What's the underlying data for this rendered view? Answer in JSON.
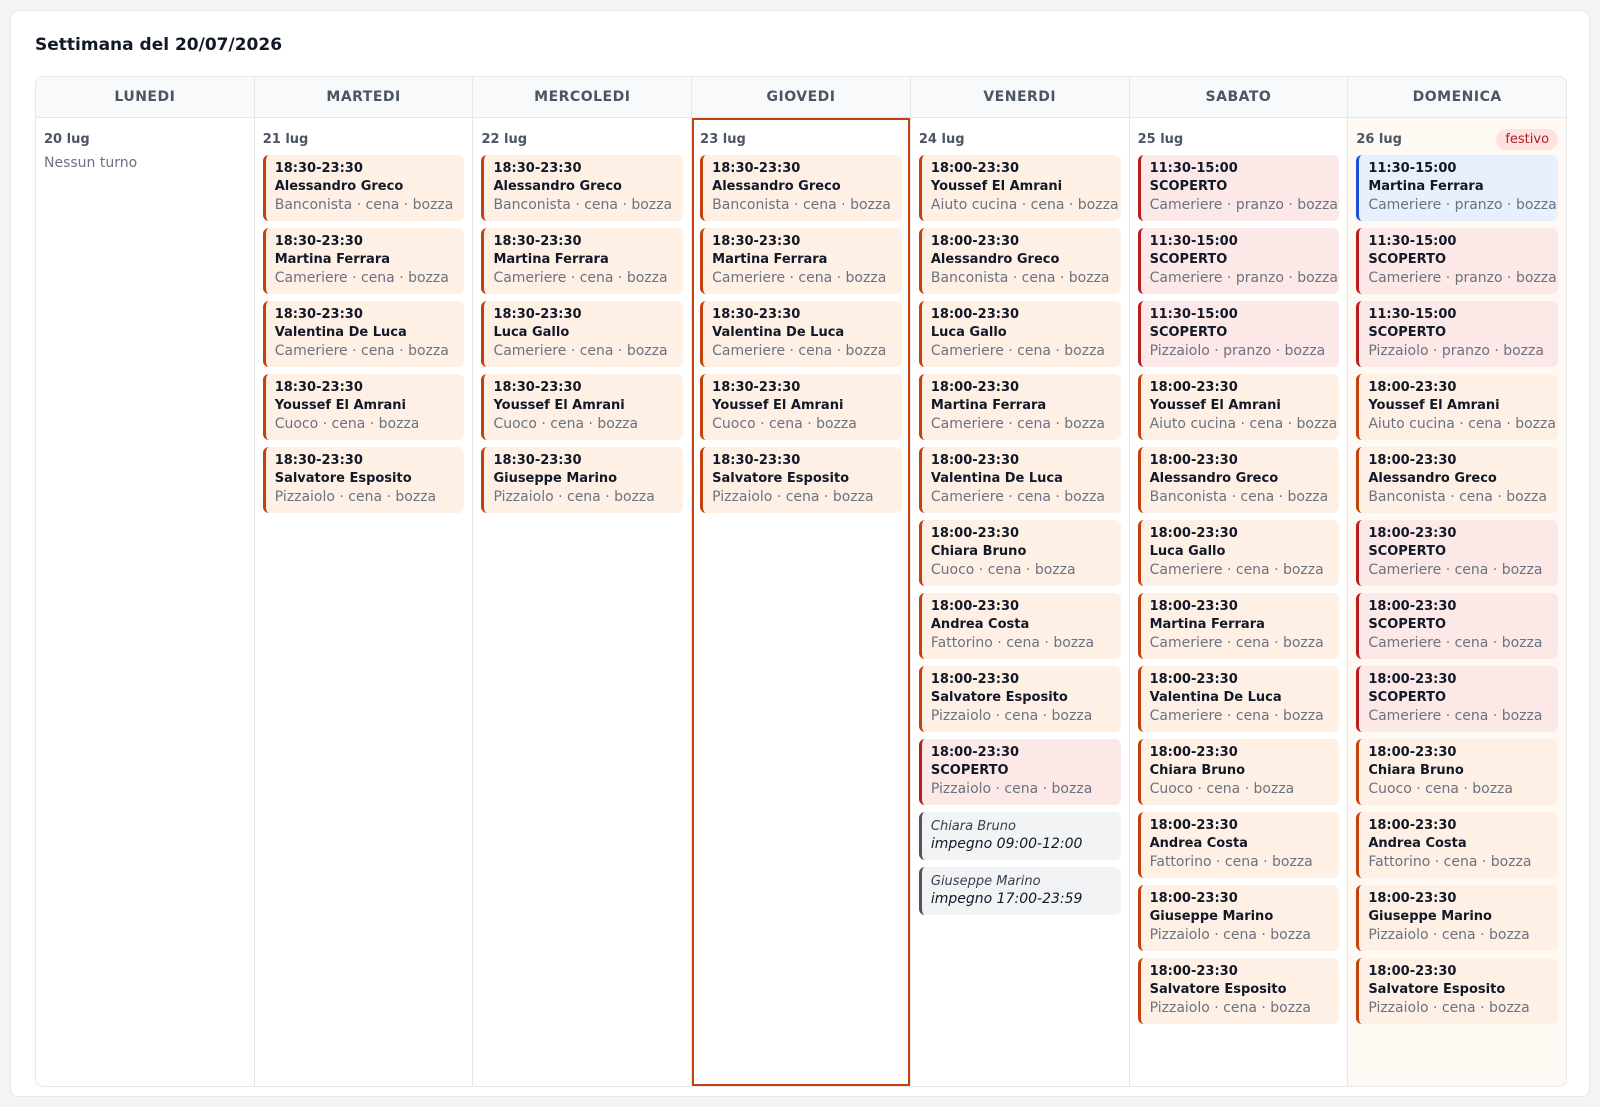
{
  "title": "Settimana del 20/07/2026",
  "days": [
    {
      "header": "LUNEDI",
      "date": "20 lug",
      "empty_text": "Nessun turno",
      "shifts": []
    },
    {
      "header": "MARTEDI",
      "date": "21 lug",
      "shifts": [
        {
          "time": "18:30-23:30",
          "name": "Alessandro Greco",
          "meta": "Banconista · cena · bozza"
        },
        {
          "time": "18:30-23:30",
          "name": "Martina Ferrara",
          "meta": "Cameriere · cena · bozza"
        },
        {
          "time": "18:30-23:30",
          "name": "Valentina De Luca",
          "meta": "Cameriere · cena · bozza"
        },
        {
          "time": "18:30-23:30",
          "name": "Youssef El Amrani",
          "meta": "Cuoco · cena · bozza"
        },
        {
          "time": "18:30-23:30",
          "name": "Salvatore Esposito",
          "meta": "Pizzaiolo · cena · bozza"
        }
      ]
    },
    {
      "header": "MERCOLEDI",
      "date": "22 lug",
      "shifts": [
        {
          "time": "18:30-23:30",
          "name": "Alessandro Greco",
          "meta": "Banconista · cena · bozza"
        },
        {
          "time": "18:30-23:30",
          "name": "Martina Ferrara",
          "meta": "Cameriere · cena · bozza"
        },
        {
          "time": "18:30-23:30",
          "name": "Luca Gallo",
          "meta": "Cameriere · cena · bozza"
        },
        {
          "time": "18:30-23:30",
          "name": "Youssef El Amrani",
          "meta": "Cuoco · cena · bozza"
        },
        {
          "time": "18:30-23:30",
          "name": "Giuseppe Marino",
          "meta": "Pizzaiolo · cena · bozza"
        }
      ]
    },
    {
      "header": "GIOVEDI",
      "date": "23 lug",
      "today": true,
      "shifts": [
        {
          "time": "18:30-23:30",
          "name": "Alessandro Greco",
          "meta": "Banconista · cena · bozza"
        },
        {
          "time": "18:30-23:30",
          "name": "Martina Ferrara",
          "meta": "Cameriere · cena · bozza"
        },
        {
          "time": "18:30-23:30",
          "name": "Valentina De Luca",
          "meta": "Cameriere · cena · bozza"
        },
        {
          "time": "18:30-23:30",
          "name": "Youssef El Amrani",
          "meta": "Cuoco · cena · bozza"
        },
        {
          "time": "18:30-23:30",
          "name": "Salvatore Esposito",
          "meta": "Pizzaiolo · cena · bozza"
        }
      ]
    },
    {
      "header": "VENERDI",
      "date": "24 lug",
      "shifts": [
        {
          "time": "18:00-23:30",
          "name": "Youssef El Amrani",
          "meta": "Aiuto cucina · cena · bozza"
        },
        {
          "time": "18:00-23:30",
          "name": "Alessandro Greco",
          "meta": "Banconista · cena · bozza"
        },
        {
          "time": "18:00-23:30",
          "name": "Luca Gallo",
          "meta": "Cameriere · cena · bozza"
        },
        {
          "time": "18:00-23:30",
          "name": "Martina Ferrara",
          "meta": "Cameriere · cena · bozza"
        },
        {
          "time": "18:00-23:30",
          "name": "Valentina De Luca",
          "meta": "Cameriere · cena · bozza"
        },
        {
          "time": "18:00-23:30",
          "name": "Chiara Bruno",
          "meta": "Cuoco · cena · bozza"
        },
        {
          "time": "18:00-23:30",
          "name": "Andrea Costa",
          "meta": "Fattorino · cena · bozza"
        },
        {
          "time": "18:00-23:30",
          "name": "Salvatore Esposito",
          "meta": "Pizzaiolo · cena · bozza"
        },
        {
          "time": "18:00-23:30",
          "name": "SCOPERTO",
          "meta": "Pizzaiolo · cena · bozza",
          "variant": "uncovered"
        }
      ],
      "unavailabilities": [
        {
          "who": "Chiara Bruno",
          "what": "impegno 09:00-12:00"
        },
        {
          "who": "Giuseppe Marino",
          "what": "impegno 17:00-23:59"
        }
      ]
    },
    {
      "header": "SABATO",
      "date": "25 lug",
      "shifts": [
        {
          "time": "11:30-15:00",
          "name": "SCOPERTO",
          "meta": "Cameriere · pranzo · bozza",
          "variant": "uncovered"
        },
        {
          "time": "11:30-15:00",
          "name": "SCOPERTO",
          "meta": "Cameriere · pranzo · bozza",
          "variant": "uncovered"
        },
        {
          "time": "11:30-15:00",
          "name": "SCOPERTO",
          "meta": "Pizzaiolo · pranzo · bozza",
          "variant": "uncovered"
        },
        {
          "time": "18:00-23:30",
          "name": "Youssef El Amrani",
          "meta": "Aiuto cucina · cena · bozza"
        },
        {
          "time": "18:00-23:30",
          "name": "Alessandro Greco",
          "meta": "Banconista · cena · bozza"
        },
        {
          "time": "18:00-23:30",
          "name": "Luca Gallo",
          "meta": "Cameriere · cena · bozza"
        },
        {
          "time": "18:00-23:30",
          "name": "Martina Ferrara",
          "meta": "Cameriere · cena · bozza"
        },
        {
          "time": "18:00-23:30",
          "name": "Valentina De Luca",
          "meta": "Cameriere · cena · bozza"
        },
        {
          "time": "18:00-23:30",
          "name": "Chiara Bruno",
          "meta": "Cuoco · cena · bozza"
        },
        {
          "time": "18:00-23:30",
          "name": "Andrea Costa",
          "meta": "Fattorino · cena · bozza"
        },
        {
          "time": "18:00-23:30",
          "name": "Giuseppe Marino",
          "meta": "Pizzaiolo · cena · bozza"
        },
        {
          "time": "18:00-23:30",
          "name": "Salvatore Esposito",
          "meta": "Pizzaiolo · cena · bozza"
        }
      ]
    },
    {
      "header": "DOMENICA",
      "date": "26 lug",
      "holiday_label": "festivo",
      "shifts": [
        {
          "time": "11:30-15:00",
          "name": "Martina Ferrara",
          "meta": "Cameriere · pranzo · bozza",
          "variant": "blue"
        },
        {
          "time": "11:30-15:00",
          "name": "SCOPERTO",
          "meta": "Cameriere · pranzo · bozza",
          "variant": "uncovered"
        },
        {
          "time": "11:30-15:00",
          "name": "SCOPERTO",
          "meta": "Pizzaiolo · pranzo · bozza",
          "variant": "uncovered"
        },
        {
          "time": "18:00-23:30",
          "name": "Youssef El Amrani",
          "meta": "Aiuto cucina · cena · bozza"
        },
        {
          "time": "18:00-23:30",
          "name": "Alessandro Greco",
          "meta": "Banconista · cena · bozza"
        },
        {
          "time": "18:00-23:30",
          "name": "SCOPERTO",
          "meta": "Cameriere · cena · bozza",
          "variant": "uncovered"
        },
        {
          "time": "18:00-23:30",
          "name": "SCOPERTO",
          "meta": "Cameriere · cena · bozza",
          "variant": "uncovered"
        },
        {
          "time": "18:00-23:30",
          "name": "SCOPERTO",
          "meta": "Cameriere · cena · bozza",
          "variant": "uncovered"
        },
        {
          "time": "18:00-23:30",
          "name": "Chiara Bruno",
          "meta": "Cuoco · cena · bozza"
        },
        {
          "time": "18:00-23:30",
          "name": "Andrea Costa",
          "meta": "Fattorino · cena · bozza"
        },
        {
          "time": "18:00-23:30",
          "name": "Giuseppe Marino",
          "meta": "Pizzaiolo · cena · bozza"
        },
        {
          "time": "18:00-23:30",
          "name": "Salvatore Esposito",
          "meta": "Pizzaiolo · cena · bozza"
        }
      ]
    }
  ],
  "colors": {
    "shift_bg": "#fff0e6",
    "shift_accent": "#c2410c",
    "uncovered_bg": "#fde8e8",
    "uncovered_accent": "#b91c1c",
    "blue_bg": "#e8f0fd",
    "blue_accent": "#1d4ed8",
    "today_outline": "#c2410c",
    "holiday_bg": "#fff9f3"
  }
}
